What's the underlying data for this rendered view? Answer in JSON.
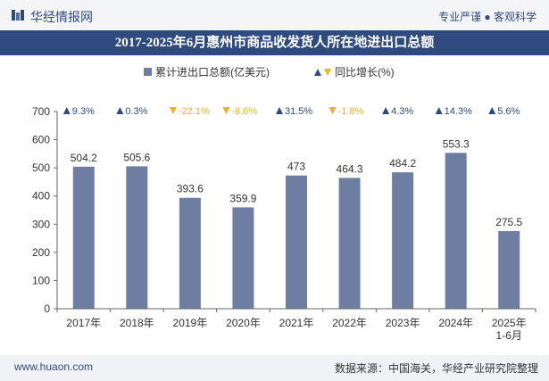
{
  "header": {
    "brand": "华经情报网",
    "slogan": "专业严谨 ● 客观科学"
  },
  "colors": {
    "bar": "#6e7ea3",
    "up": "#2e4a7e",
    "down": "#f2b01e",
    "title_bg": "#2e4a7e"
  },
  "chart_data": {
    "type": "bar",
    "title": "2017-2025年6月惠州市商品收发货人所在地进出口总额",
    "categories": [
      "2017年",
      "2018年",
      "2019年",
      "2020年",
      "2021年",
      "2022年",
      "2023年",
      "2024年",
      "2025年\n1-6月"
    ],
    "series": [
      {
        "name": "累计进出口总额(亿美元)",
        "values": [
          504.2,
          505.6,
          393.6,
          359.9,
          473,
          464.3,
          484.2,
          553.3,
          275.5
        ],
        "labels": [
          "504.2",
          "505.6",
          "393.6",
          "359.9",
          "473",
          "464.3",
          "484.2",
          "553.3",
          "275.5"
        ]
      },
      {
        "name": "同比增长(%)",
        "values": [
          9.3,
          0.3,
          -22.1,
          -8.6,
          31.5,
          -1.8,
          4.3,
          14.3,
          5.6
        ],
        "labels": [
          "9.3%",
          "0.3%",
          "-22.1%",
          "-8.6%",
          "31.5%",
          "-1.8%",
          "4.3%",
          "14.3%",
          "5.6%"
        ]
      }
    ],
    "ylim": [
      0,
      700
    ],
    "yticks": [
      0,
      100,
      200,
      300,
      400,
      500,
      600,
      700
    ],
    "legend": "top-center",
    "grid": false
  },
  "footer": {
    "website": "www.huaon.com",
    "source": "数据来源：中国海关，华经产业研究院整理"
  }
}
